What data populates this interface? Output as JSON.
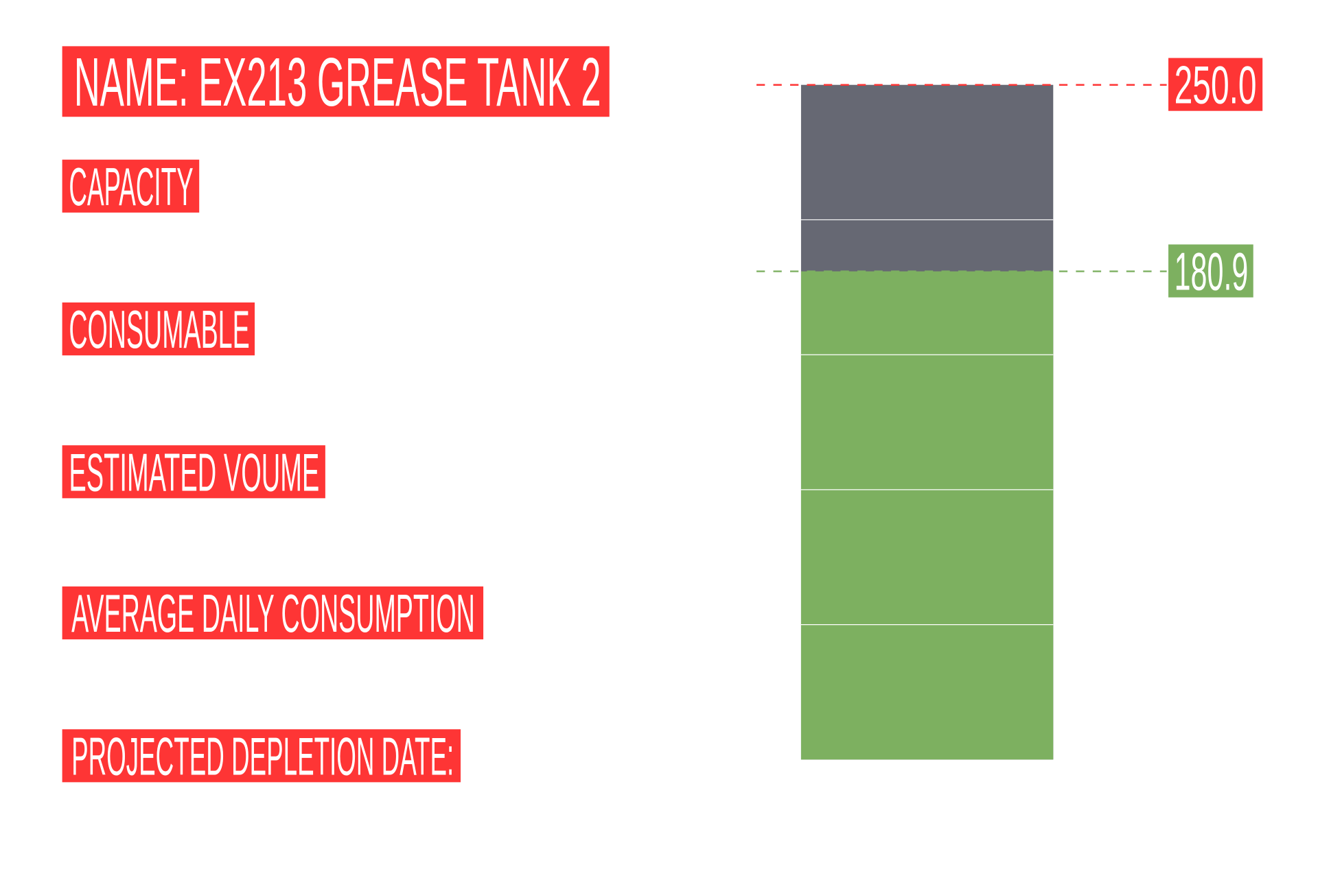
{
  "header": {
    "title": "NAME: EX213 GREASE TANK 2"
  },
  "fields": [
    "CAPACITY",
    "CONSUMABLE",
    "ESTIMATED VOUME",
    "AVERAGE DAILY CONSUMPTION",
    "PROJECTED DEPLETION DATE:"
  ],
  "gauge": {
    "max": {
      "value": 250,
      "label": "250.0"
    },
    "level": {
      "value": 180.9,
      "label": "180.9"
    }
  }
}
